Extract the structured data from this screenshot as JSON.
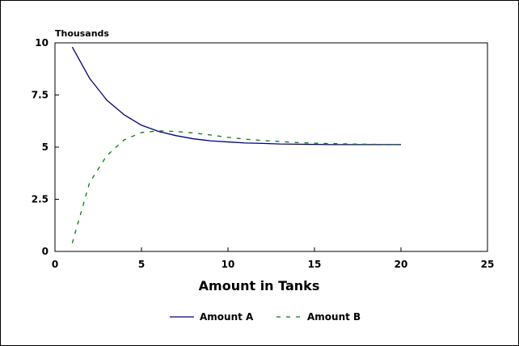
{
  "chart_data": {
    "type": "line",
    "title": "",
    "xlabel": "Amount in Tanks",
    "ylabel": "",
    "y_unit_label": "Thousands",
    "xlim": [
      0,
      25
    ],
    "ylim": [
      0,
      10
    ],
    "x_ticks": [
      0,
      5,
      10,
      15,
      20,
      25
    ],
    "y_ticks": [
      0,
      2.5,
      5,
      7.5,
      10
    ],
    "x_tick_labels": [
      "0",
      "5",
      "10",
      "15",
      "20",
      "25"
    ],
    "y_tick_labels": [
      "0",
      "2.5",
      "5",
      "7.5",
      "10"
    ],
    "grid": false,
    "legend_position": "bottom",
    "x": [
      1,
      2,
      3,
      4,
      5,
      6,
      7,
      8,
      9,
      10,
      11,
      12,
      13,
      14,
      15,
      16,
      17,
      18,
      19,
      20
    ],
    "series": [
      {
        "name": "Amount A",
        "color": "#000080",
        "style": "solid",
        "values": [
          9.8,
          8.3,
          7.25,
          6.55,
          6.05,
          5.75,
          5.55,
          5.4,
          5.3,
          5.25,
          5.2,
          5.18,
          5.15,
          5.14,
          5.13,
          5.12,
          5.12,
          5.12,
          5.12,
          5.12
        ]
      },
      {
        "name": "Amount B",
        "color": "#008000",
        "style": "dashed",
        "values": [
          0.4,
          3.3,
          4.6,
          5.35,
          5.7,
          5.78,
          5.75,
          5.68,
          5.58,
          5.47,
          5.38,
          5.32,
          5.27,
          5.22,
          5.19,
          5.17,
          5.15,
          5.14,
          5.13,
          5.13
        ]
      }
    ]
  }
}
